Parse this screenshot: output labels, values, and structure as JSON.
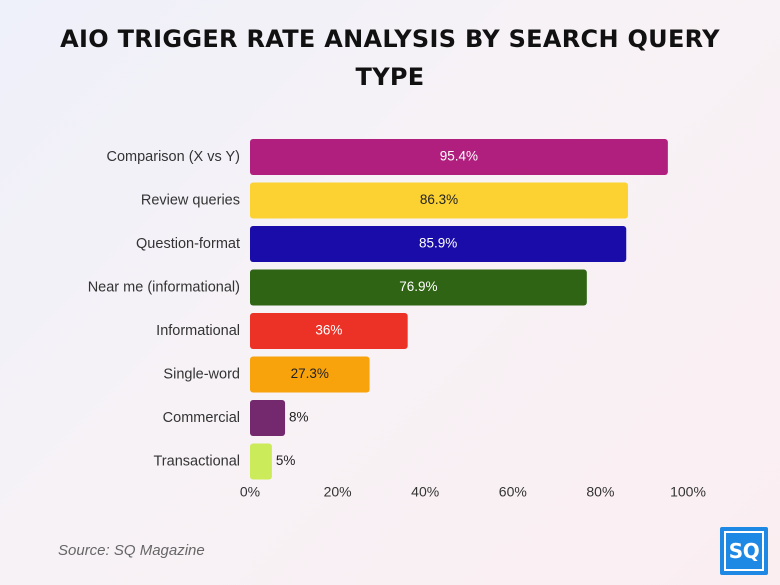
{
  "title": "AIO TRIGGER RATE ANALYSIS BY SEARCH QUERY TYPE",
  "source": "Source: SQ Magazine",
  "logo_text": "SQ",
  "colors": {
    "logo": "#1e88e5"
  },
  "chart_data": {
    "type": "bar",
    "orientation": "horizontal",
    "title": "AIO TRIGGER RATE ANALYSIS BY SEARCH QUERY TYPE",
    "categories": [
      "Comparison (X vs Y)",
      "Review queries",
      "Question-format",
      "Near me (informational)",
      "Informational",
      "Single-word",
      "Commercial",
      "Transactional"
    ],
    "values": [
      95.4,
      86.3,
      85.9,
      76.9,
      36,
      27.3,
      8,
      5
    ],
    "value_labels": [
      "95.4%",
      "86.3%",
      "85.9%",
      "76.9%",
      "36%",
      "27.3%",
      "8%",
      "5%"
    ],
    "bar_colors": [
      "#b01f7e",
      "#fcd232",
      "#1a0ca8",
      "#2e6414",
      "#ec3227",
      "#f9a30c",
      "#74286e",
      "#cbeb5a"
    ],
    "label_colors": [
      "#ffffff",
      "#222222",
      "#ffffff",
      "#ffffff",
      "#ffffff",
      "#222222",
      "#ffffff",
      "#222222"
    ],
    "x_ticks": [
      0,
      20,
      40,
      60,
      80,
      100
    ],
    "x_tick_labels": [
      "0%",
      "20%",
      "40%",
      "60%",
      "80%",
      "100%"
    ],
    "xlim": [
      0,
      100
    ],
    "xlabel": "",
    "ylabel": "",
    "grid": false,
    "legend": "none"
  }
}
